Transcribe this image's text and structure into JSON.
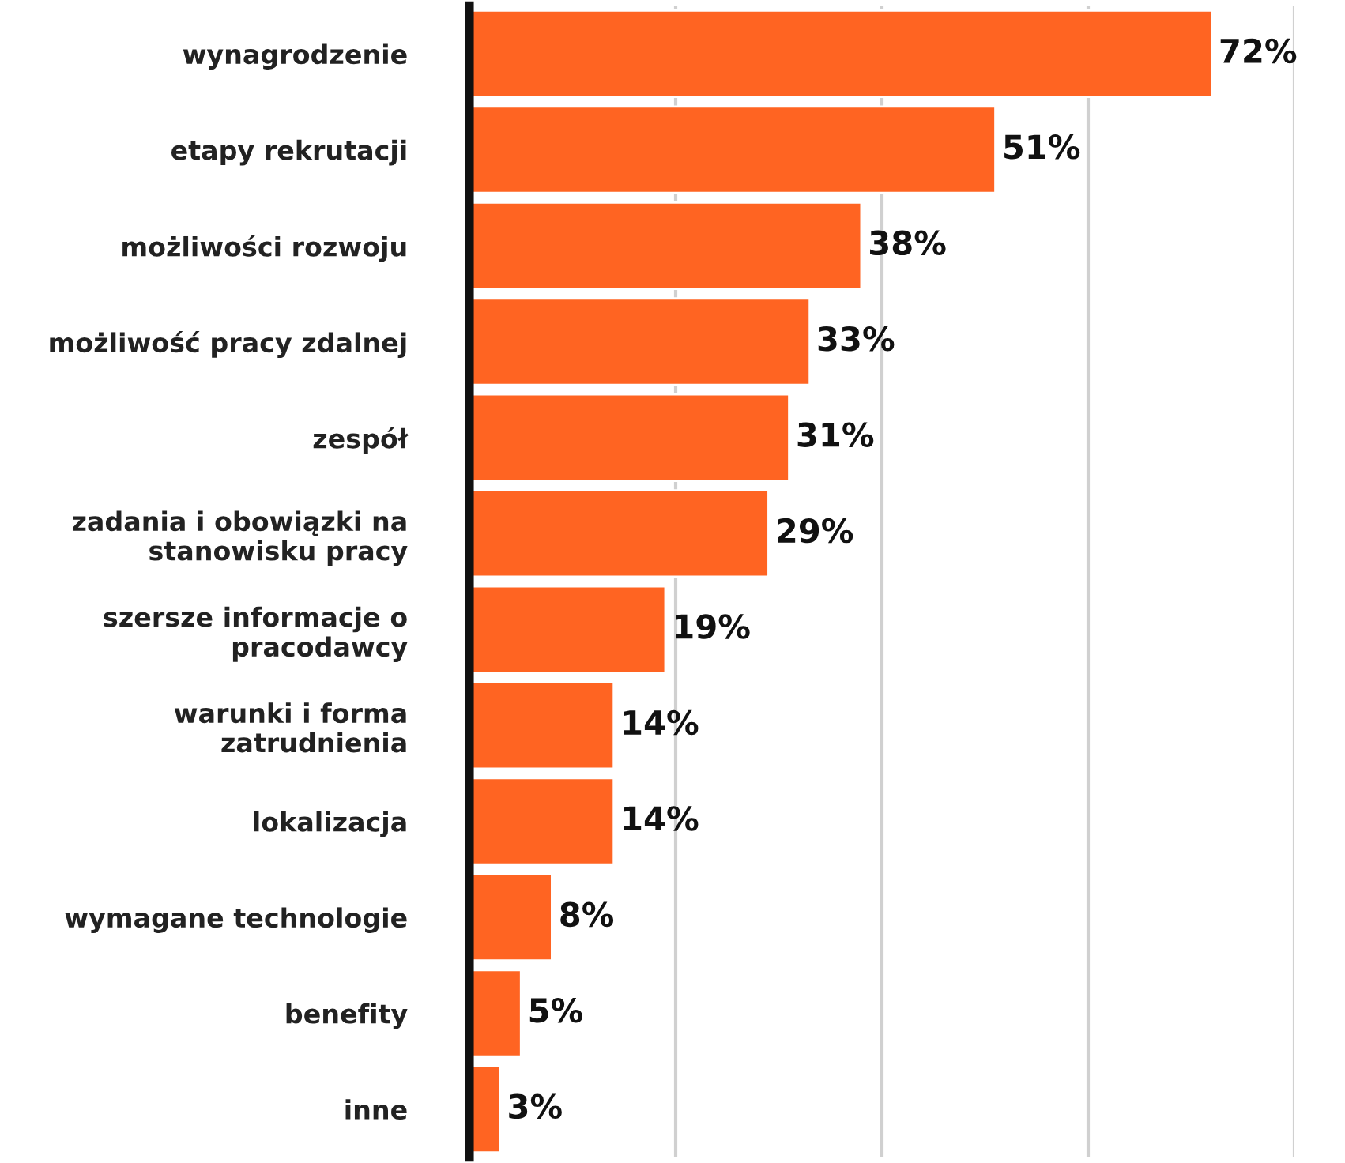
{
  "chart_data": {
    "type": "bar",
    "orientation": "horizontal",
    "categories": [
      "wynagrodzenie",
      "etapy rekrutacji",
      "możliwości rozwoju",
      "możliwość pracy zdalnej",
      "zespół",
      "zadania i obowiązki na\nstanowisku pracy",
      "szersze informacje o\npracodawcy",
      "warunki i forma\nzatrudnienia",
      "lokalizacja",
      "wymagane technologie",
      "benefity",
      "inne"
    ],
    "values": [
      72,
      51,
      38,
      33,
      31,
      29,
      19,
      14,
      14,
      8,
      5,
      3
    ],
    "value_labels": [
      "72%",
      "51%",
      "38%",
      "33%",
      "31%",
      "29%",
      "19%",
      "14%",
      "14%",
      "8%",
      "5%",
      "3%"
    ],
    "color": "#ff6422",
    "xlim": [
      0,
      80
    ],
    "xticks": [
      {
        "value": 20,
        "label": null
      },
      {
        "value": 40,
        "label": null
      },
      {
        "value": 60,
        "label": null
      },
      {
        "value": 80,
        "label": null
      }
    ],
    "grid": "x",
    "tick_labels": "y",
    "legend": false
  }
}
